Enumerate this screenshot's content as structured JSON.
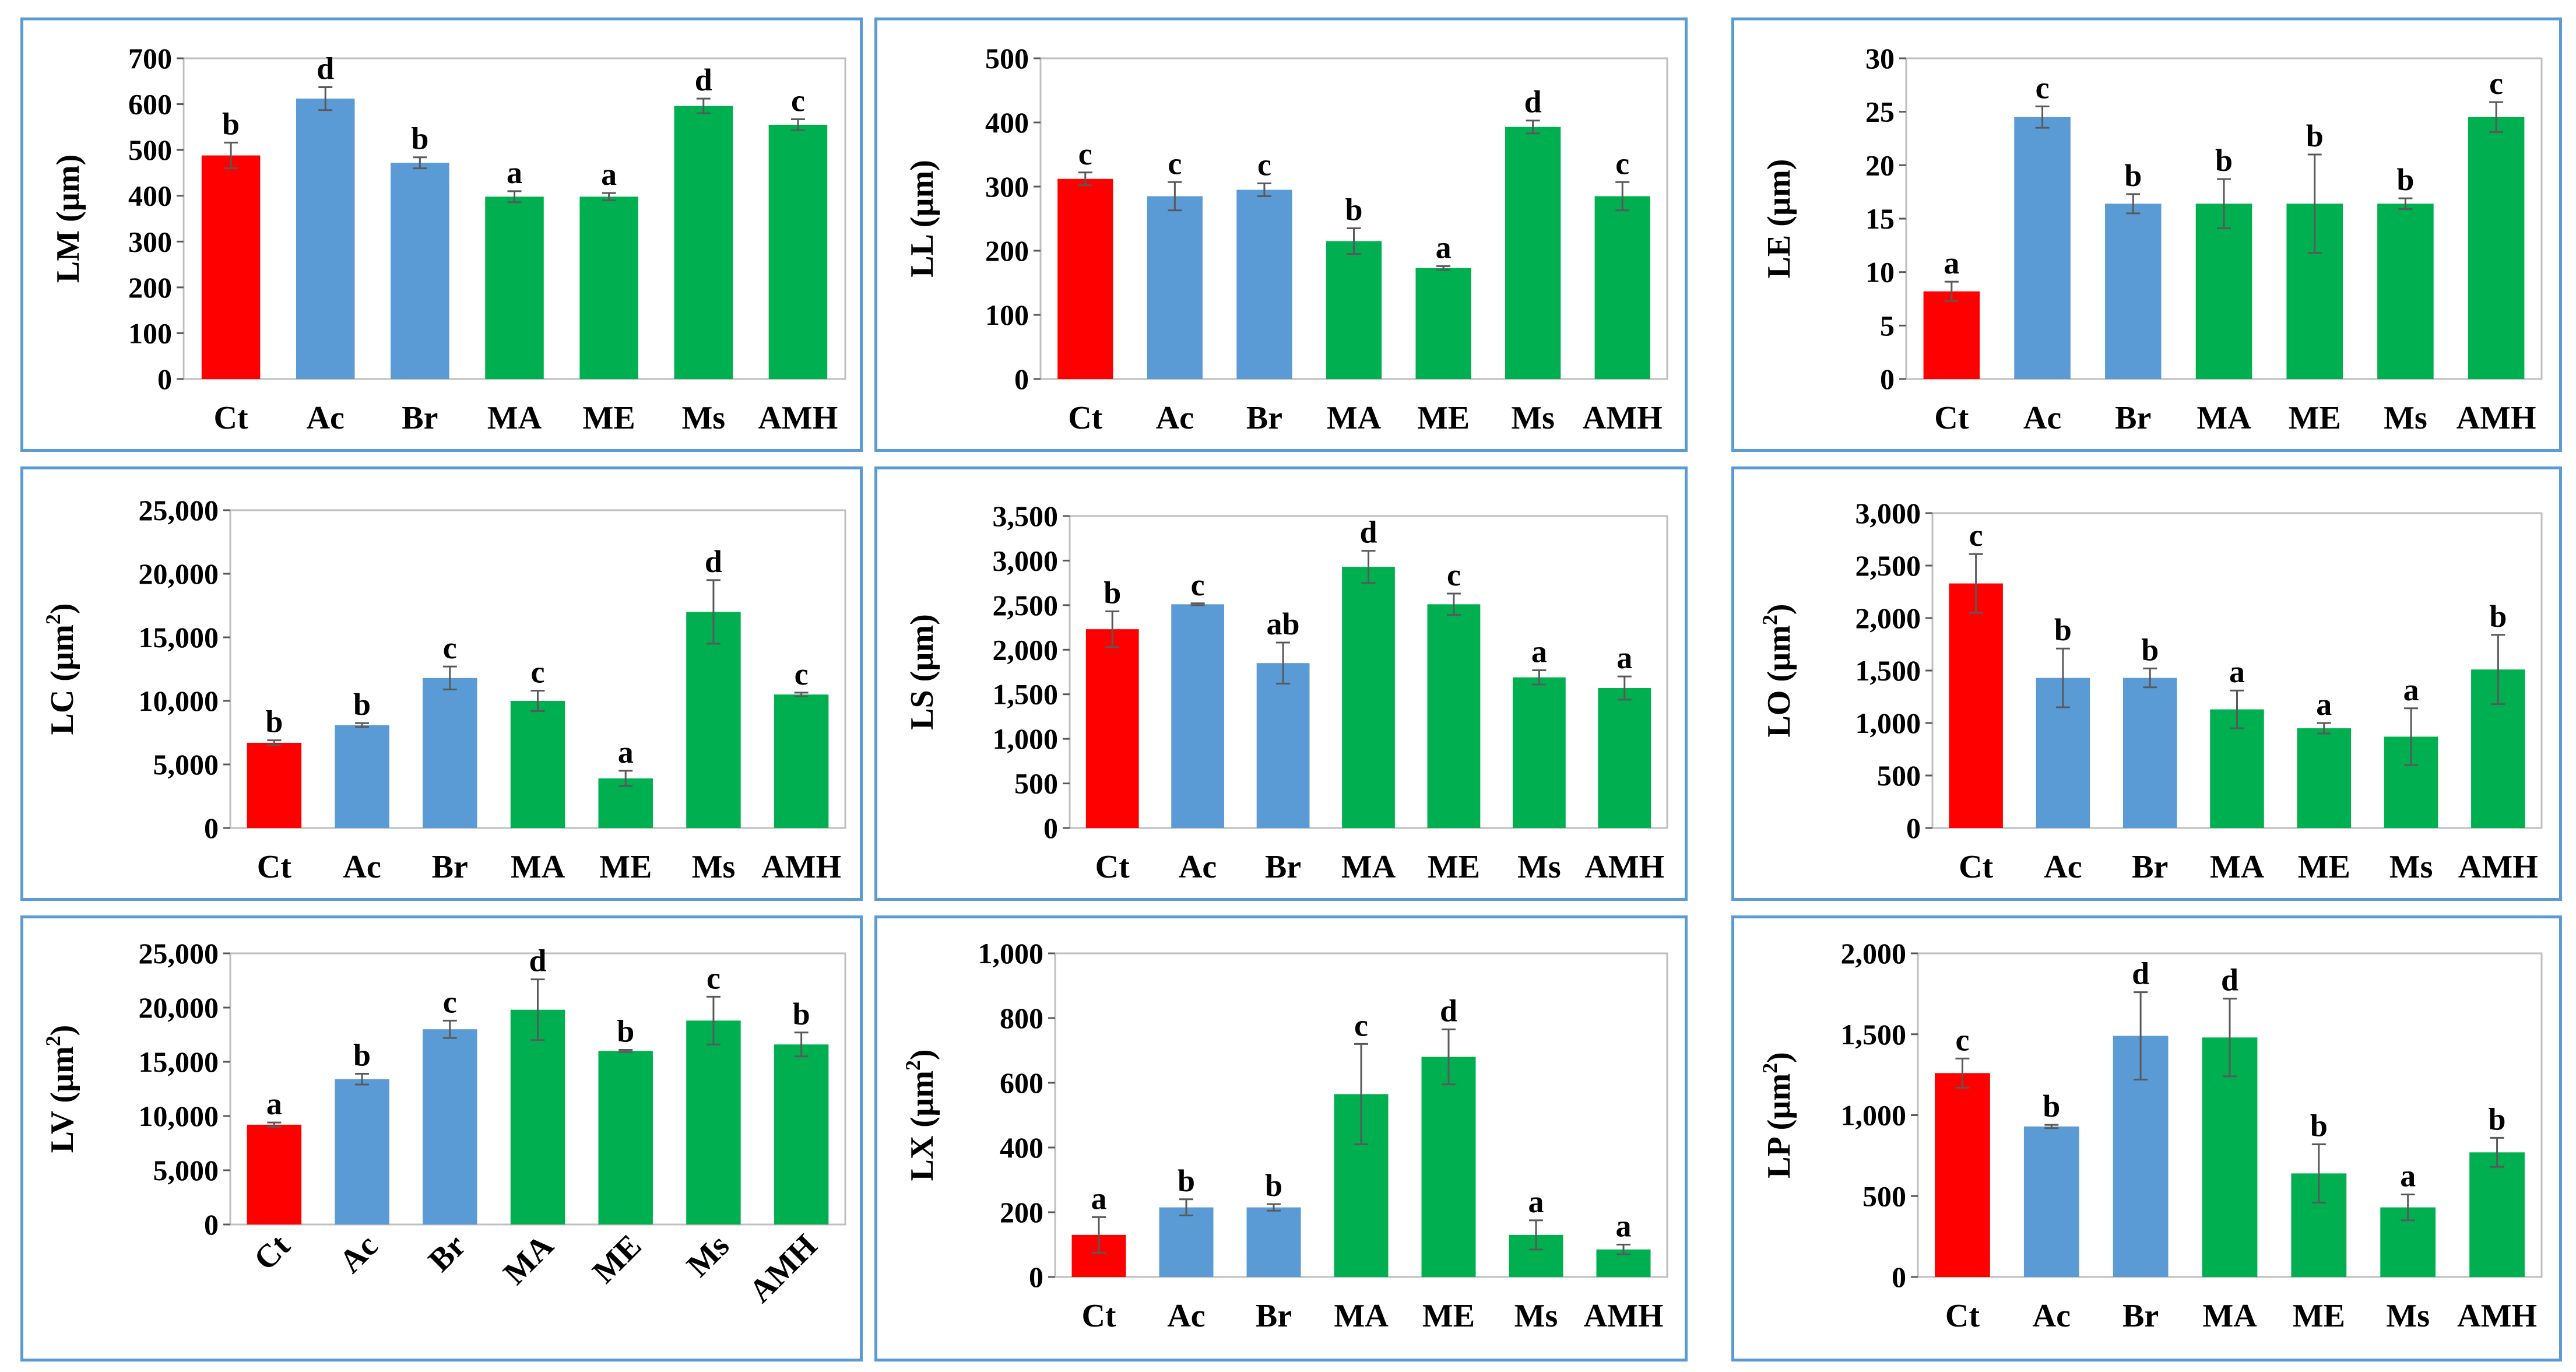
{
  "colors": {
    "Ct": "#ff0000",
    "Ac": "#5b9bd5",
    "Br": "#5b9bd5",
    "MA": "#00b050",
    "ME": "#00b050",
    "Ms": "#00b050",
    "AMH": "#00b050",
    "frame": "#5b9bd5",
    "plot_border": "#bfbfbf",
    "error_bar": "#595959"
  },
  "chart_data": [
    {
      "id": "LM",
      "type": "bar",
      "ylabel_main": "LM (µm)",
      "ylabel_sup": "",
      "ylabel_end": "",
      "categories": [
        "Ct",
        "Ac",
        "Br",
        "MA",
        "ME",
        "Ms",
        "AMH"
      ],
      "values": [
        488,
        612,
        472,
        398,
        398,
        596,
        555
      ],
      "errors": [
        28,
        25,
        12,
        12,
        8,
        16,
        12
      ],
      "letters": [
        "b",
        "d",
        "b",
        "a",
        "a",
        "d",
        "c"
      ],
      "ylim": [
        0,
        700
      ],
      "yticks": [
        "0",
        "100",
        "200",
        "300",
        "400",
        "500",
        "600",
        "700"
      ],
      "rotated_categories": false
    },
    {
      "id": "LL",
      "type": "bar",
      "ylabel_main": "LL (µm)",
      "ylabel_sup": "",
      "ylabel_end": "",
      "categories": [
        "Ct",
        "Ac",
        "Br",
        "MA",
        "ME",
        "Ms",
        "AMH"
      ],
      "values": [
        312,
        285,
        295,
        215,
        173,
        393,
        285
      ],
      "errors": [
        10,
        22,
        10,
        20,
        3,
        10,
        22
      ],
      "letters": [
        "c",
        "c",
        "c",
        "b",
        "a",
        "d",
        "c"
      ],
      "ylim": [
        0,
        500
      ],
      "yticks": [
        "0",
        "100",
        "200",
        "300",
        "400",
        "500"
      ],
      "rotated_categories": false
    },
    {
      "id": "LE",
      "type": "bar",
      "ylabel_main": "LE (µm)",
      "ylabel_sup": "",
      "ylabel_end": "",
      "categories": [
        "Ct",
        "Ac",
        "Br",
        "MA",
        "ME",
        "Ms",
        "AMH"
      ],
      "values": [
        8.2,
        24.5,
        16.4,
        16.4,
        16.4,
        16.4,
        24.5
      ],
      "errors": [
        0.9,
        1.0,
        0.9,
        2.3,
        4.6,
        0.5,
        1.4
      ],
      "letters": [
        "a",
        "c",
        "b",
        "b",
        "b",
        "b",
        "c"
      ],
      "ylim": [
        0,
        30
      ],
      "yticks": [
        "0",
        "5",
        "10",
        "15",
        "20",
        "25",
        "30"
      ],
      "rotated_categories": false
    },
    {
      "id": "LC",
      "type": "bar",
      "ylabel_main": "LC (µm",
      "ylabel_sup": "2",
      "ylabel_end": ")",
      "categories": [
        "Ct",
        "Ac",
        "Br",
        "MA",
        "ME",
        "Ms",
        "AMH"
      ],
      "values": [
        6700,
        8100,
        11800,
        10000,
        3900,
        17000,
        10500
      ],
      "errors": [
        200,
        150,
        900,
        800,
        600,
        2500,
        150
      ],
      "letters": [
        "b",
        "b",
        "c",
        "c",
        "a",
        "d",
        "c"
      ],
      "ylim": [
        0,
        25000
      ],
      "yticks": [
        "0",
        "5,000",
        "10,000",
        "15,000",
        "20,000",
        "25,000"
      ],
      "rotated_categories": false
    },
    {
      "id": "LS",
      "type": "bar",
      "ylabel_main": "LS (µm)",
      "ylabel_sup": "",
      "ylabel_end": "",
      "categories": [
        "Ct",
        "Ac",
        "Br",
        "MA",
        "ME",
        "Ms",
        "AMH"
      ],
      "values": [
        2230,
        2510,
        1850,
        2930,
        2510,
        1690,
        1570
      ],
      "errors": [
        200,
        10,
        230,
        180,
        120,
        80,
        130
      ],
      "letters": [
        "b",
        "c",
        "ab",
        "d",
        "c",
        "a",
        "a"
      ],
      "ylim": [
        0,
        3500
      ],
      "yticks": [
        "0",
        "500",
        "1,000",
        "1,500",
        "2,000",
        "2,500",
        "3,000",
        "3,500"
      ],
      "rotated_categories": false
    },
    {
      "id": "LO",
      "type": "bar",
      "ylabel_main": "LO (µm",
      "ylabel_sup": "2",
      "ylabel_end": ")",
      "categories": [
        "Ct",
        "Ac",
        "Br",
        "MA",
        "ME",
        "Ms",
        "AMH"
      ],
      "values": [
        2330,
        1430,
        1430,
        1130,
        950,
        870,
        1510
      ],
      "errors": [
        280,
        280,
        90,
        180,
        50,
        270,
        330
      ],
      "letters": [
        "c",
        "b",
        "b",
        "a",
        "a",
        "a",
        "b"
      ],
      "ylim": [
        0,
        3000
      ],
      "yticks": [
        "0",
        "500",
        "1,000",
        "1,500",
        "2,000",
        "2,500",
        "3,000"
      ],
      "rotated_categories": false
    },
    {
      "id": "LV",
      "type": "bar",
      "ylabel_main": "LV (µm",
      "ylabel_sup": "2",
      "ylabel_end": ")",
      "categories": [
        "Ct",
        "Ac",
        "Br",
        "MA",
        "ME",
        "Ms",
        "AMH"
      ],
      "values": [
        9200,
        13400,
        18000,
        19800,
        16000,
        18800,
        16600
      ],
      "errors": [
        200,
        500,
        800,
        2800,
        100,
        2200,
        1100
      ],
      "letters": [
        "a",
        "b",
        "c",
        "d",
        "b",
        "c",
        "b"
      ],
      "ylim": [
        0,
        25000
      ],
      "yticks": [
        "0",
        "5,000",
        "10,000",
        "15,000",
        "20,000",
        "25,000"
      ],
      "rotated_categories": true
    },
    {
      "id": "LX",
      "type": "bar",
      "ylabel_main": "LX (µm",
      "ylabel_sup": "2",
      "ylabel_end": ")",
      "categories": [
        "Ct",
        "Ac",
        "Br",
        "MA",
        "ME",
        "Ms",
        "AMH"
      ],
      "values": [
        130,
        215,
        215,
        565,
        680,
        130,
        85
      ],
      "errors": [
        55,
        25,
        10,
        155,
        85,
        45,
        15
      ],
      "letters": [
        "a",
        "b",
        "b",
        "c",
        "d",
        "a",
        "a"
      ],
      "ylim": [
        0,
        1000
      ],
      "yticks": [
        "0",
        "200",
        "400",
        "600",
        "800",
        "1,000"
      ],
      "rotated_categories": false
    },
    {
      "id": "LP",
      "type": "bar",
      "ylabel_main": "LP (µm",
      "ylabel_sup": "2",
      "ylabel_end": ")",
      "categories": [
        "Ct",
        "Ac",
        "Br",
        "MA",
        "ME",
        "Ms",
        "AMH"
      ],
      "values": [
        1260,
        930,
        1490,
        1480,
        640,
        430,
        770
      ],
      "errors": [
        90,
        10,
        270,
        240,
        180,
        80,
        90
      ],
      "letters": [
        "c",
        "b",
        "d",
        "d",
        "b",
        "a",
        "b"
      ],
      "ylim": [
        0,
        2000
      ],
      "yticks": [
        "0",
        "500",
        "1,000",
        "1,500",
        "2,000"
      ],
      "rotated_categories": false
    }
  ]
}
